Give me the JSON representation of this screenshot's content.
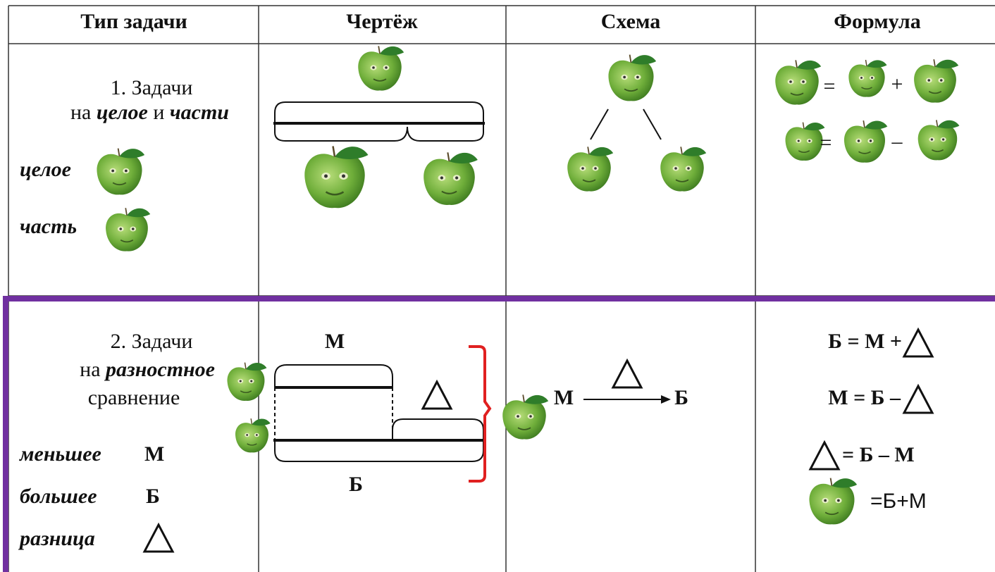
{
  "table": {
    "headers": [
      "Тип задачи",
      "Чертёж",
      "Схема",
      "Формула"
    ],
    "rows": [
      {
        "type": {
          "line1": "1. Задачи",
          "line2": [
            "на",
            "целое",
            "и",
            "части"
          ]
        },
        "legend": [
          "целое",
          "часть"
        ],
        "formula": [
          "=",
          "+",
          "=",
          "–"
        ]
      },
      {
        "type": {
          "line1": "2. Задачи",
          "line2": [
            "на",
            "разностное"
          ],
          "line3": "сравнение"
        },
        "legend": [
          [
            "меньшее",
            "М"
          ],
          [
            "большее",
            "Б"
          ],
          [
            "разница"
          ]
        ],
        "drawing": {
          "top": "М",
          "bottom": "Б"
        },
        "scheme": {
          "from": "М",
          "to": "Б"
        },
        "formula": [
          "Б = М +",
          "М = Б –",
          "= Б – М",
          "=Б+М"
        ]
      }
    ]
  }
}
